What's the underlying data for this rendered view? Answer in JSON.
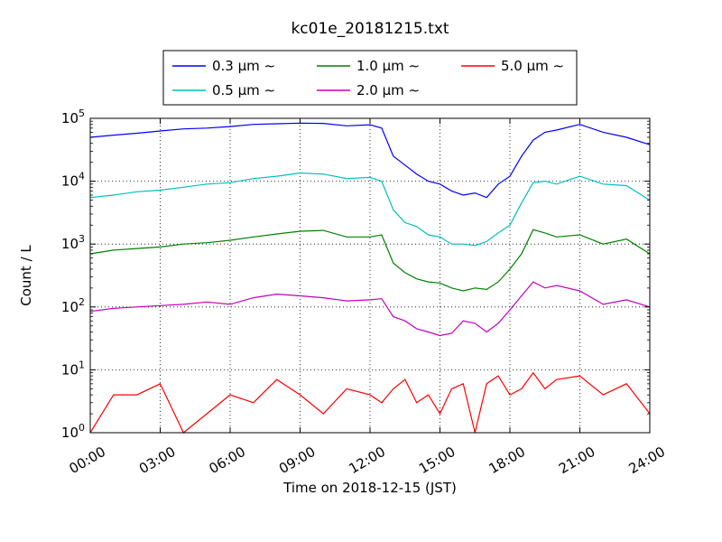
{
  "chart_data": {
    "type": "line",
    "title": "kc01e_20181215.txt",
    "xlabel": "Time on 2018-12-15 (JST)",
    "ylabel": "Count / L",
    "y_scale": "log",
    "ylim": [
      1,
      100000
    ],
    "x_range_hours": [
      0,
      24
    ],
    "grid": true,
    "grid_style": "dotted",
    "legend_location": "top-center, above plot",
    "x_ticks": [
      "00:00",
      "03:00",
      "06:00",
      "09:00",
      "12:00",
      "15:00",
      "18:00",
      "21:00",
      "24:00"
    ],
    "y_ticks": [
      {
        "base": "10",
        "exp": "0"
      },
      {
        "base": "10",
        "exp": "1"
      },
      {
        "base": "10",
        "exp": "2"
      },
      {
        "base": "10",
        "exp": "3"
      },
      {
        "base": "10",
        "exp": "4"
      },
      {
        "base": "10",
        "exp": "5"
      }
    ],
    "x_hours": [
      0,
      1,
      2,
      3,
      4,
      5,
      6,
      7,
      8,
      9,
      10,
      11,
      12,
      12.5,
      13,
      13.5,
      14,
      14.5,
      15,
      15.5,
      16,
      16.5,
      17,
      17.5,
      18,
      18.5,
      19,
      19.5,
      20,
      21,
      22,
      23,
      24
    ],
    "series": [
      {
        "name": "0.3 μm ∼",
        "color": "#0000ff",
        "values": [
          50000,
          54000,
          58000,
          63000,
          68000,
          70000,
          74000,
          80000,
          82000,
          84000,
          83000,
          76000,
          79000,
          70000,
          25000,
          18000,
          13000,
          10000,
          9000,
          7000,
          6000,
          6500,
          5500,
          9000,
          12000,
          25000,
          45000,
          60000,
          65000,
          80000,
          60000,
          50000,
          38000
        ]
      },
      {
        "name": "0.5 μm ∼",
        "color": "#00bfbf",
        "values": [
          5500,
          6000,
          6800,
          7200,
          8000,
          9000,
          9500,
          11000,
          12000,
          13500,
          13000,
          11000,
          11500,
          10000,
          3500,
          2200,
          1900,
          1400,
          1300,
          1000,
          1000,
          950,
          1100,
          1500,
          2000,
          4500,
          9500,
          10000,
          9000,
          12000,
          9000,
          8500,
          5000
        ]
      },
      {
        "name": "1.0 μm ∼",
        "color": "#008000",
        "values": [
          700,
          800,
          850,
          900,
          1000,
          1050,
          1150,
          1300,
          1450,
          1600,
          1650,
          1300,
          1300,
          1400,
          500,
          350,
          280,
          250,
          240,
          200,
          180,
          200,
          190,
          250,
          400,
          700,
          1700,
          1500,
          1300,
          1400,
          1000,
          1200,
          700
        ]
      },
      {
        "name": "2.0 μm ∼",
        "color": "#bf00bf",
        "values": [
          85,
          95,
          100,
          105,
          110,
          120,
          110,
          140,
          160,
          150,
          140,
          125,
          130,
          135,
          70,
          60,
          45,
          40,
          35,
          38,
          60,
          55,
          40,
          55,
          90,
          150,
          250,
          200,
          220,
          180,
          110,
          130,
          100
        ]
      },
      {
        "name": "5.0 μm ∼",
        "color": "#ff0000",
        "values": [
          1,
          4,
          4,
          6,
          1,
          2,
          4,
          3,
          7,
          4,
          2,
          5,
          4,
          3,
          5,
          7,
          3,
          4,
          2,
          5,
          6,
          1,
          6,
          8,
          4,
          5,
          9,
          5,
          7,
          8,
          4,
          6,
          2
        ]
      }
    ]
  }
}
